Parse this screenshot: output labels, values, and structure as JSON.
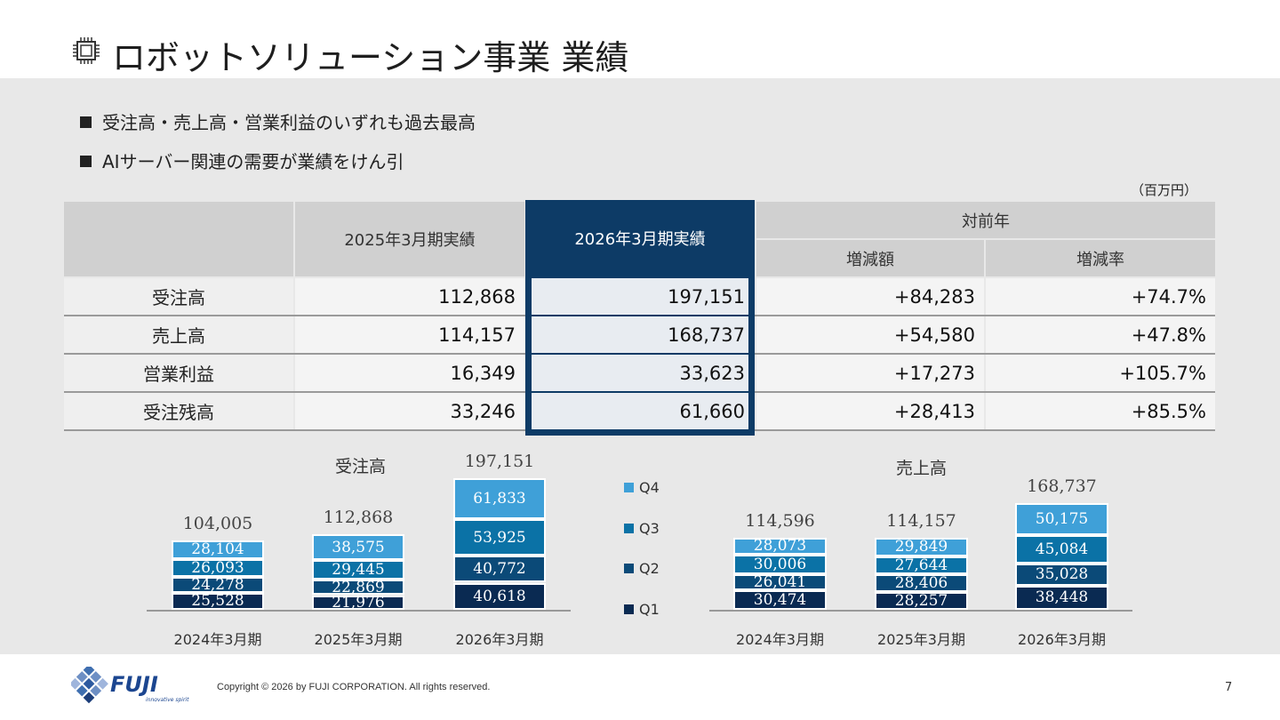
{
  "title": "ロボットソリューション事業 業績",
  "bullets": [
    "受注高・売上高・営業利益のいずれも過去最高",
    "AIサーバー関連の需要が業績をけん引"
  ],
  "unit": "（百万円）",
  "table": {
    "header_prev": "2025年3月期実績",
    "header_curr": "2026年3月期実績",
    "header_yoy": "対前年",
    "header_diff": "増減額",
    "header_rate": "増減率",
    "rows": [
      {
        "label": "受注高",
        "prev": "112,868",
        "curr": "197,151",
        "diff": "+84,283",
        "rate": "+74.7%"
      },
      {
        "label": "売上高",
        "prev": "114,157",
        "curr": "168,737",
        "diff": "+54,580",
        "rate": "+47.8%"
      },
      {
        "label": "営業利益",
        "prev": "16,349",
        "curr": "33,623",
        "diff": "+17,273",
        "rate": "+105.7%"
      },
      {
        "label": "受注残高",
        "prev": "33,246",
        "curr": "61,660",
        "diff": "+28,413",
        "rate": "+85.5%"
      }
    ]
  },
  "legend": [
    {
      "name": "Q4",
      "color": "#3fa0d8"
    },
    {
      "name": "Q3",
      "color": "#0b72a6"
    },
    {
      "name": "Q2",
      "color": "#0b4a78"
    },
    {
      "name": "Q1",
      "color": "#0a2a52"
    }
  ],
  "chart_data": [
    {
      "type": "bar",
      "stacked": true,
      "title": "受注高",
      "categories": [
        "2024年3月期",
        "2025年3月期",
        "2026年3月期"
      ],
      "totals": [
        "104,005",
        "112,868",
        "197,151"
      ],
      "series": [
        {
          "name": "Q1",
          "values": [
            25528,
            21976,
            40618
          ],
          "labels": [
            "25,528",
            "21,976",
            "40,618"
          ]
        },
        {
          "name": "Q2",
          "values": [
            24278,
            22869,
            40772
          ],
          "labels": [
            "24,278",
            "22,869",
            "40,772"
          ]
        },
        {
          "name": "Q3",
          "values": [
            26093,
            29445,
            53925
          ],
          "labels": [
            "26,093",
            "29,445",
            "53,925"
          ]
        },
        {
          "name": "Q4",
          "values": [
            28104,
            38575,
            61833
          ],
          "labels": [
            "28,104",
            "38,575",
            "61,833"
          ]
        }
      ]
    },
    {
      "type": "bar",
      "stacked": true,
      "title": "売上高",
      "categories": [
        "2024年3月期",
        "2025年3月期",
        "2026年3月期"
      ],
      "totals": [
        "114,596",
        "114,157",
        "168,737"
      ],
      "series": [
        {
          "name": "Q1",
          "values": [
            30474,
            28257,
            38448
          ],
          "labels": [
            "30,474",
            "28,257",
            "38,448"
          ]
        },
        {
          "name": "Q2",
          "values": [
            26041,
            28406,
            35028
          ],
          "labels": [
            "26,041",
            "28,406",
            "35,028"
          ]
        },
        {
          "name": "Q3",
          "values": [
            30006,
            27644,
            45084
          ],
          "labels": [
            "30,006",
            "27,644",
            "45,084"
          ]
        },
        {
          "name": "Q4",
          "values": [
            28073,
            29849,
            50175
          ],
          "labels": [
            "28,073",
            "29,849",
            "50,175"
          ]
        }
      ]
    }
  ],
  "logo_text": "FUJI",
  "logo_tagline": "innovative spirit",
  "copyright": "Copyright © 2026 by FUJI CORPORATION. All rights reserved.",
  "page_number": "7"
}
